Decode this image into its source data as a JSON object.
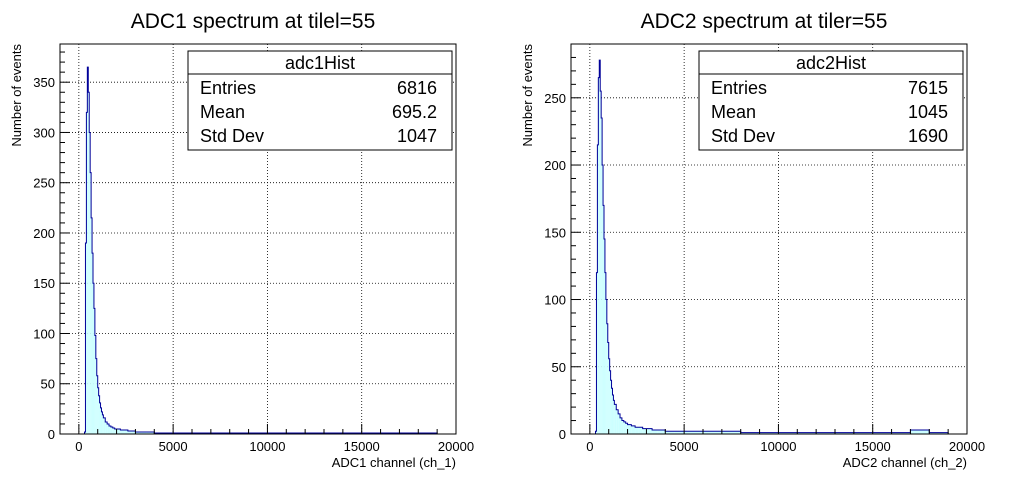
{
  "charts": [
    {
      "type": "bar",
      "title": "ADC1 spectrum at tilel=55",
      "xlabel": "ADC1 channel (ch_1)",
      "ylabel": "Number of events",
      "xlim": [
        -1000,
        20000
      ],
      "ylim": [
        0,
        388
      ],
      "xticks": [
        0,
        5000,
        10000,
        15000,
        20000
      ],
      "yticks": [
        0,
        50,
        100,
        150,
        200,
        250,
        300,
        350
      ],
      "grid": true,
      "fill_color": "#ccffff",
      "line_color": "#000099",
      "stats": {
        "name": "adc1Hist",
        "rows": [
          {
            "label": "Entries",
            "value": "6816"
          },
          {
            "label": "Mean",
            "value": "695.2"
          },
          {
            "label": "Std Dev",
            "value": "1047"
          }
        ]
      },
      "bins": {
        "x": [
          300,
          350,
          400,
          450,
          500,
          550,
          600,
          650,
          700,
          750,
          800,
          850,
          900,
          950,
          1000,
          1050,
          1100,
          1150,
          1200,
          1250,
          1300,
          1400,
          1500,
          1600,
          1700,
          1800,
          1900,
          2000,
          2200,
          2400,
          2600,
          2800,
          3000,
          3300,
          3600,
          4000,
          4500,
          5000,
          6000,
          8000,
          10000,
          12000,
          14000,
          16000,
          18000,
          19000
        ],
        "y": [
          2,
          190,
          320,
          365,
          340,
          300,
          260,
          215,
          180,
          150,
          125,
          98,
          75,
          58,
          46,
          38,
          31,
          26,
          22,
          19,
          16,
          12,
          10,
          8,
          7,
          6,
          5,
          5,
          4,
          4,
          3,
          3,
          2,
          2,
          2,
          1,
          1,
          1,
          1,
          1,
          1,
          1,
          1,
          1,
          1,
          0
        ]
      }
    },
    {
      "type": "bar",
      "title": "ADC2 spectrum at tiler=55",
      "xlabel": "ADC2 channel (ch_2)",
      "ylabel": "Number of events",
      "xlim": [
        -1000,
        20000
      ],
      "ylim": [
        0,
        290
      ],
      "xticks": [
        0,
        5000,
        10000,
        15000,
        20000
      ],
      "yticks": [
        0,
        50,
        100,
        150,
        200,
        250
      ],
      "grid": true,
      "fill_color": "#ccffff",
      "line_color": "#000099",
      "stats": {
        "name": "adc2Hist",
        "rows": [
          {
            "label": "Entries",
            "value": "7615"
          },
          {
            "label": "Mean",
            "value": "1045"
          },
          {
            "label": "Std Dev",
            "value": "1690"
          }
        ]
      },
      "bins": {
        "x": [
          300,
          350,
          400,
          450,
          500,
          550,
          600,
          650,
          700,
          750,
          800,
          850,
          900,
          950,
          1000,
          1050,
          1100,
          1150,
          1200,
          1250,
          1300,
          1400,
          1500,
          1600,
          1700,
          1800,
          1900,
          2000,
          2200,
          2400,
          2600,
          2800,
          3000,
          3300,
          3600,
          4000,
          4500,
          5000,
          6000,
          8000,
          10000,
          12000,
          14000,
          16000,
          17000,
          18000,
          19000
        ],
        "y": [
          2,
          120,
          215,
          265,
          278,
          255,
          235,
          200,
          170,
          145,
          120,
          100,
          82,
          68,
          56,
          47,
          40,
          34,
          29,
          25,
          22,
          18,
          15,
          12,
          10,
          9,
          8,
          7,
          6,
          5,
          5,
          4,
          4,
          3,
          3,
          2,
          2,
          2,
          2,
          1,
          1,
          1,
          1,
          1,
          3,
          1,
          0
        ]
      }
    }
  ]
}
